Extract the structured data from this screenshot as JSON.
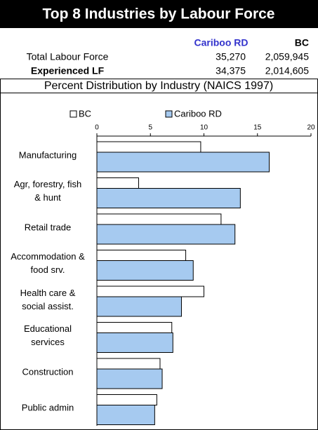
{
  "header": {
    "title": "Top 8 Industries by Labour Force"
  },
  "table": {
    "columns": [
      "Cariboo RD",
      "BC"
    ],
    "rows": [
      [
        "Total Labour Force",
        "35,270",
        "2,059,945"
      ],
      [
        "Experienced LF",
        "34,375",
        "2,014,605"
      ]
    ]
  },
  "chart_data": {
    "type": "hbar",
    "title": "Percent Distribution by Industry (NAICS 1997)",
    "categories": [
      "Manufacturing",
      "Agr, forestry, fish & hunt",
      "Retail trade",
      "Accommodation & food srv.",
      "Health care & social assist.",
      "Educational services",
      "Construction",
      "Public admin"
    ],
    "series": [
      {
        "name": "BC",
        "color": "#ffffff",
        "values": [
          9.7,
          3.9,
          11.6,
          8.3,
          10.0,
          7.0,
          5.9,
          5.6
        ]
      },
      {
        "name": "Cariboo RD",
        "color": "#a6caf0",
        "values": [
          16.1,
          13.4,
          12.9,
          9.0,
          7.9,
          7.1,
          6.1,
          5.4
        ]
      }
    ],
    "xlim": [
      0,
      20
    ],
    "xticks": [
      0,
      5,
      10,
      15,
      20
    ],
    "legend": "top"
  }
}
